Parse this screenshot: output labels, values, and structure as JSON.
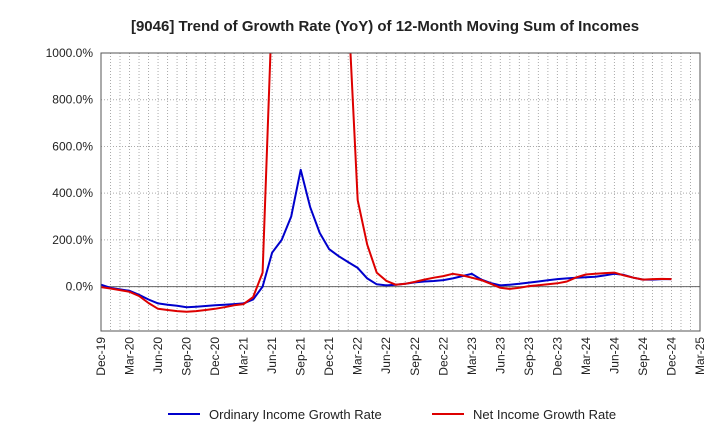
{
  "chart_data": {
    "type": "line",
    "title": "[9046]  Trend of Growth Rate (YoY) of 12-Month Moving Sum of Incomes",
    "xlabel": "",
    "ylabel": "",
    "ylim": [
      -190,
      1000
    ],
    "y_ticks": [
      0,
      200,
      400,
      600,
      800,
      1000
    ],
    "y_tick_labels": [
      "0.0%",
      "200.0%",
      "400.0%",
      "600.0%",
      "800.0%",
      "1000.0%"
    ],
    "x_tick_labels": [
      "Dec-19",
      "Mar-20",
      "Jun-20",
      "Sep-20",
      "Dec-20",
      "Mar-21",
      "Jun-21",
      "Sep-21",
      "Dec-21",
      "Mar-22",
      "Jun-22",
      "Sep-22",
      "Dec-22",
      "Mar-23",
      "Jun-23",
      "Sep-23",
      "Dec-23",
      "Mar-24",
      "Jun-24",
      "Sep-24",
      "Dec-24",
      "Mar-25"
    ],
    "grid": true,
    "legend_position": "bottom",
    "x": [
      "Dec-19",
      "Jan-20",
      "Feb-20",
      "Mar-20",
      "Apr-20",
      "May-20",
      "Jun-20",
      "Jul-20",
      "Aug-20",
      "Sep-20",
      "Oct-20",
      "Nov-20",
      "Dec-20",
      "Jan-21",
      "Feb-21",
      "Mar-21",
      "Apr-21",
      "May-21",
      "Jun-21",
      "Jul-21",
      "Aug-21",
      "Sep-21",
      "Oct-21",
      "Nov-21",
      "Dec-21",
      "Jan-22",
      "Feb-22",
      "Mar-22",
      "Apr-22",
      "May-22",
      "Jun-22",
      "Jul-22",
      "Aug-22",
      "Sep-22",
      "Oct-22",
      "Nov-22",
      "Dec-22",
      "Jan-23",
      "Feb-23",
      "Mar-23",
      "Apr-23",
      "May-23",
      "Jun-23",
      "Jul-23",
      "Aug-23",
      "Sep-23",
      "Oct-23",
      "Nov-23",
      "Dec-23",
      "Jan-24",
      "Feb-24",
      "Mar-24",
      "Apr-24",
      "May-24",
      "Jun-24",
      "Jul-24",
      "Aug-24",
      "Sep-24",
      "Oct-24",
      "Nov-24",
      "Dec-24"
    ],
    "series": [
      {
        "name": "Ordinary Income Growth Rate",
        "color": "#0000cc",
        "values": [
          8,
          -5,
          -12,
          -18,
          -35,
          -55,
          -72,
          -78,
          -82,
          -88,
          -86,
          -83,
          -80,
          -78,
          -75,
          -72,
          -55,
          0,
          145,
          200,
          300,
          500,
          340,
          230,
          160,
          130,
          105,
          80,
          35,
          10,
          5,
          8,
          12,
          18,
          22,
          24,
          28,
          35,
          45,
          55,
          30,
          15,
          5,
          8,
          12,
          17,
          22,
          27,
          32,
          35,
          38,
          40,
          42,
          48,
          55,
          50,
          38,
          30,
          30,
          32,
          32
        ]
      },
      {
        "name": "Net Income Growth Rate",
        "color": "#dd0000",
        "values": [
          -2,
          -8,
          -15,
          -22,
          -40,
          -70,
          -95,
          -100,
          -105,
          -108,
          -105,
          -100,
          -95,
          -88,
          -80,
          -75,
          -45,
          60,
          1200,
          null,
          null,
          null,
          null,
          null,
          null,
          null,
          1200,
          370,
          180,
          60,
          25,
          8,
          12,
          20,
          30,
          38,
          45,
          55,
          48,
          38,
          28,
          12,
          -5,
          -10,
          -5,
          2,
          6,
          10,
          14,
          22,
          40,
          52,
          55,
          58,
          60,
          48,
          38,
          30,
          32,
          33,
          32
        ]
      }
    ]
  }
}
